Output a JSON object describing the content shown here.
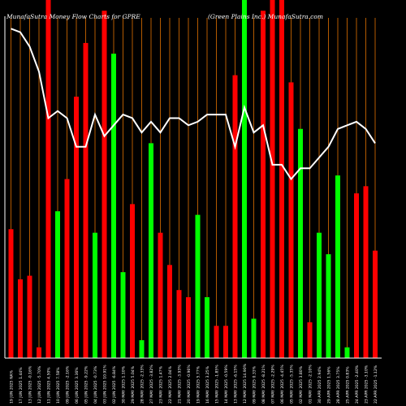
{
  "title_left": "MunafaSutra  Money Flow  Charts for GPRE",
  "title_right": "(Green  Plains  Inc.)  MunafaSutra.com",
  "colors": {
    "background": "#000000",
    "up": "#00ff00",
    "down": "#ff0000",
    "grid": "#b35a00",
    "line": "#ffffff",
    "axis": "#ffffff"
  },
  "chart_data": {
    "type": "bar",
    "grid": "vertical",
    "ylim": [
      0,
      100
    ],
    "categories": [
      "19 JUN 2025 NA%",
      "17 JUN 2025 1.44%",
      "13 JUN 2025 -0.16%",
      "12 JUN 2025 -5.70%",
      "11 JUN 2025 4.50%",
      "10 JUN 2025 7.58%",
      "09 JUN 2025 -2.16%",
      "06 JUN 2025 3.36%",
      "05 JUN 2025 -9.22%",
      "04 JUN 2025 -0.73%",
      "03 JUN 2025 10.91%",
      "02 JUN 2025 -6.84%",
      "30 MAY 2025 1.10%",
      "29 MAY 2025 5.04%",
      "28 MAY 2025 -2.33%",
      "27 MAY 2025 -3.82%",
      "23 MAY 2025 1.47%",
      "22 MAY 2025 2.04%",
      "21 MAY 2025 -3.93%",
      "20 MAY 2025 -0.96%",
      "19 MAY 2025 5.77%",
      "16 MAY 2025 3.25%",
      "15 MAY 2025 -1.85%",
      "14 MAY 2025 -0.59%",
      "13 MAY 2025 -6.15%",
      "12 MAY 2025 14.90%",
      "09 MAY 2025 0.33%",
      "08 MAY 2025 -8.21%",
      "07 MAY 2025 -2.29%",
      "06 MAY 2025 -4.45%",
      "05 MAY 2025 -5.35%",
      "02 MAY 2025 3.80%",
      "01 MAY 2025 -2.10%",
      "30 APR 2025 2.94%",
      "29 APR 2025 1.56%",
      "28 APR 2025 3.75%",
      "25 APR 2025 0.83%",
      "24 APR 2025 -2.40%",
      "23 APR 2025 -3.10%",
      "22 APR 2025 -1.12%"
    ],
    "series": [
      {
        "role": "money_flow_bars",
        "values": [
          36,
          22,
          23,
          3,
          100,
          41,
          50,
          73,
          88,
          35,
          97,
          85,
          24,
          43,
          5,
          60,
          35,
          26,
          19,
          17,
          40,
          17,
          9,
          9,
          79,
          100,
          11,
          97,
          100,
          100,
          77,
          64,
          10,
          35,
          29,
          51,
          3,
          46,
          48,
          30
        ],
        "directions": [
          "down",
          "down",
          "down",
          "down",
          "down",
          "up",
          "down",
          "down",
          "down",
          "up",
          "down",
          "up",
          "up",
          "down",
          "up",
          "up",
          "down",
          "down",
          "down",
          "down",
          "up",
          "up",
          "down",
          "down",
          "down",
          "up",
          "up",
          "down",
          "down",
          "down",
          "down",
          "up",
          "down",
          "up",
          "up",
          "up",
          "up",
          "down",
          "down",
          "down"
        ]
      },
      {
        "role": "price_line",
        "values": [
          92,
          91,
          87,
          80,
          67,
          69,
          67,
          59,
          59,
          68,
          62,
          65,
          68,
          67,
          63,
          66,
          63,
          67,
          67,
          65,
          66,
          68,
          68,
          68,
          59,
          70,
          63,
          65,
          54,
          54,
          50,
          53,
          53,
          56,
          59,
          64,
          65,
          66,
          64,
          60
        ]
      }
    ]
  }
}
